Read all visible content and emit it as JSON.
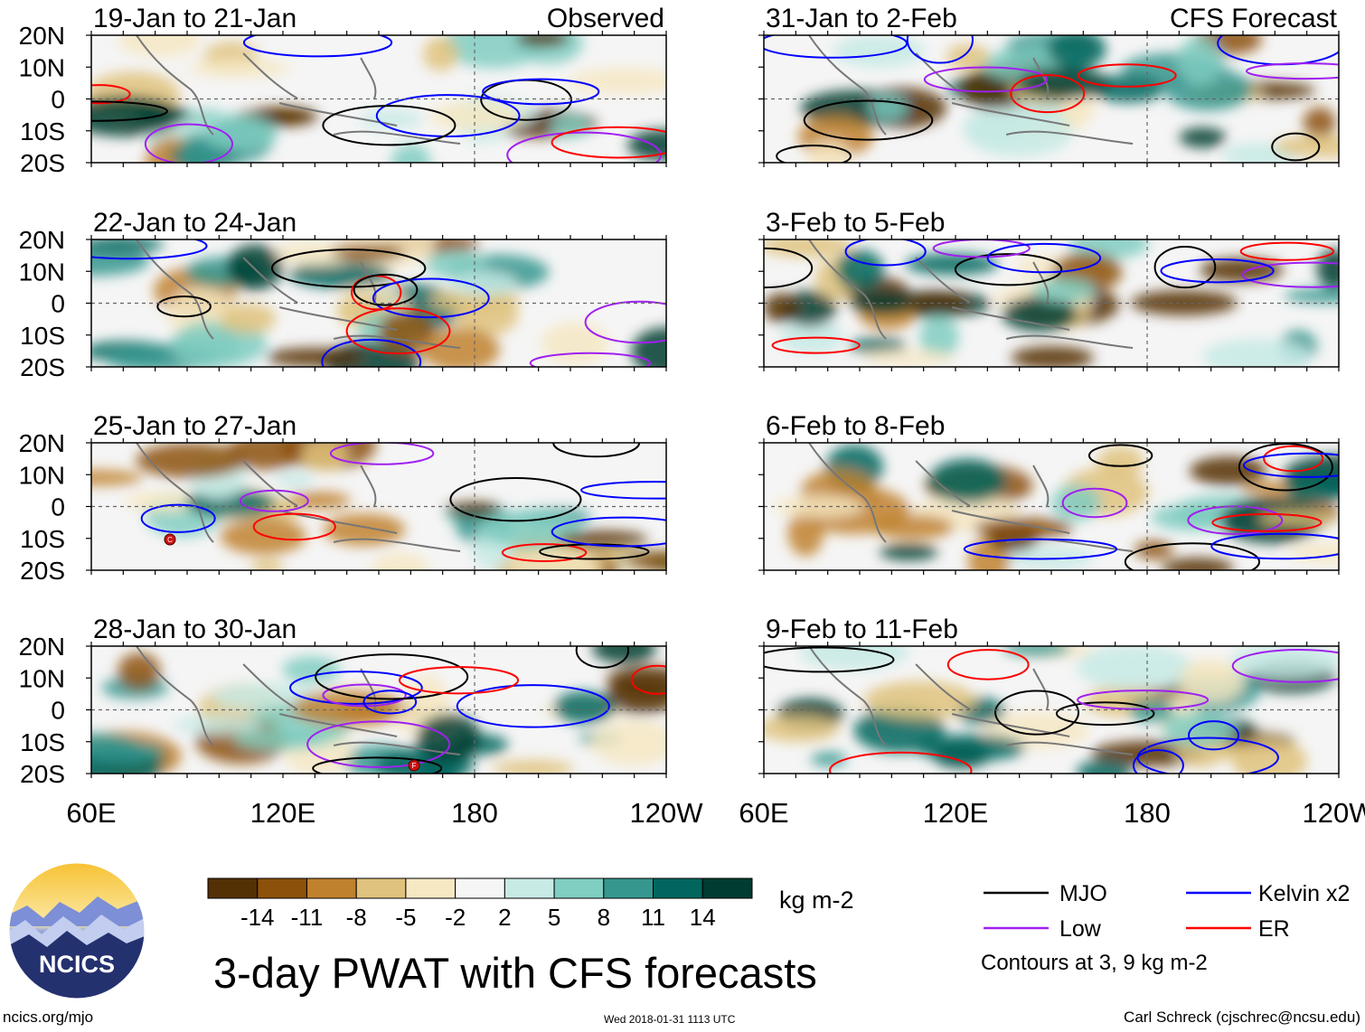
{
  "panels": [
    {
      "date_range": "19-Jan to 21-Jan",
      "source_label": "Observed"
    },
    {
      "date_range": "22-Jan to 24-Jan",
      "source_label": ""
    },
    {
      "date_range": "25-Jan to 27-Jan",
      "source_label": ""
    },
    {
      "date_range": "28-Jan to 30-Jan",
      "source_label": ""
    },
    {
      "date_range": "31-Jan to 2-Feb",
      "source_label": "CFS Forecast"
    },
    {
      "date_range": "3-Feb to 5-Feb",
      "source_label": ""
    },
    {
      "date_range": "6-Feb to 8-Feb",
      "source_label": ""
    },
    {
      "date_range": "9-Feb to 11-Feb",
      "source_label": ""
    }
  ],
  "lat_labels": [
    "20N",
    "10N",
    "0",
    "10S",
    "20S"
  ],
  "lon_labels": [
    "60E",
    "120E",
    "180",
    "120W"
  ],
  "colorbar": {
    "ticks": [
      "-14",
      "-11",
      "-8",
      "-5",
      "-2",
      "2",
      "5",
      "8",
      "11",
      "14"
    ],
    "colors": [
      "#543005",
      "#8c510a",
      "#bf812d",
      "#dfc27d",
      "#f6e8c3",
      "#f5f5f5",
      "#c7eae5",
      "#80cdc1",
      "#35978f",
      "#01665e",
      "#003c30"
    ],
    "units": "kg m-2"
  },
  "title": "3-day PWAT with CFS forecasts",
  "legend": {
    "items": [
      {
        "label": "MJO",
        "color": "#000000"
      },
      {
        "label": "Kelvin x2",
        "color": "#0000ff"
      },
      {
        "label": "Low",
        "color": "#a020f0"
      },
      {
        "label": "ER",
        "color": "#ff0000"
      }
    ],
    "note": "Contours at 3, 9 kg m-2"
  },
  "logo_text": "NCICS",
  "footer": {
    "site": "ncics.org/mjo",
    "timestamp": "Wed 2018-01-31 1113 UTC",
    "credit": "Carl Schreck (cjschrec@ncsu.edu)"
  },
  "storm_markers": [
    "C",
    "F"
  ]
}
